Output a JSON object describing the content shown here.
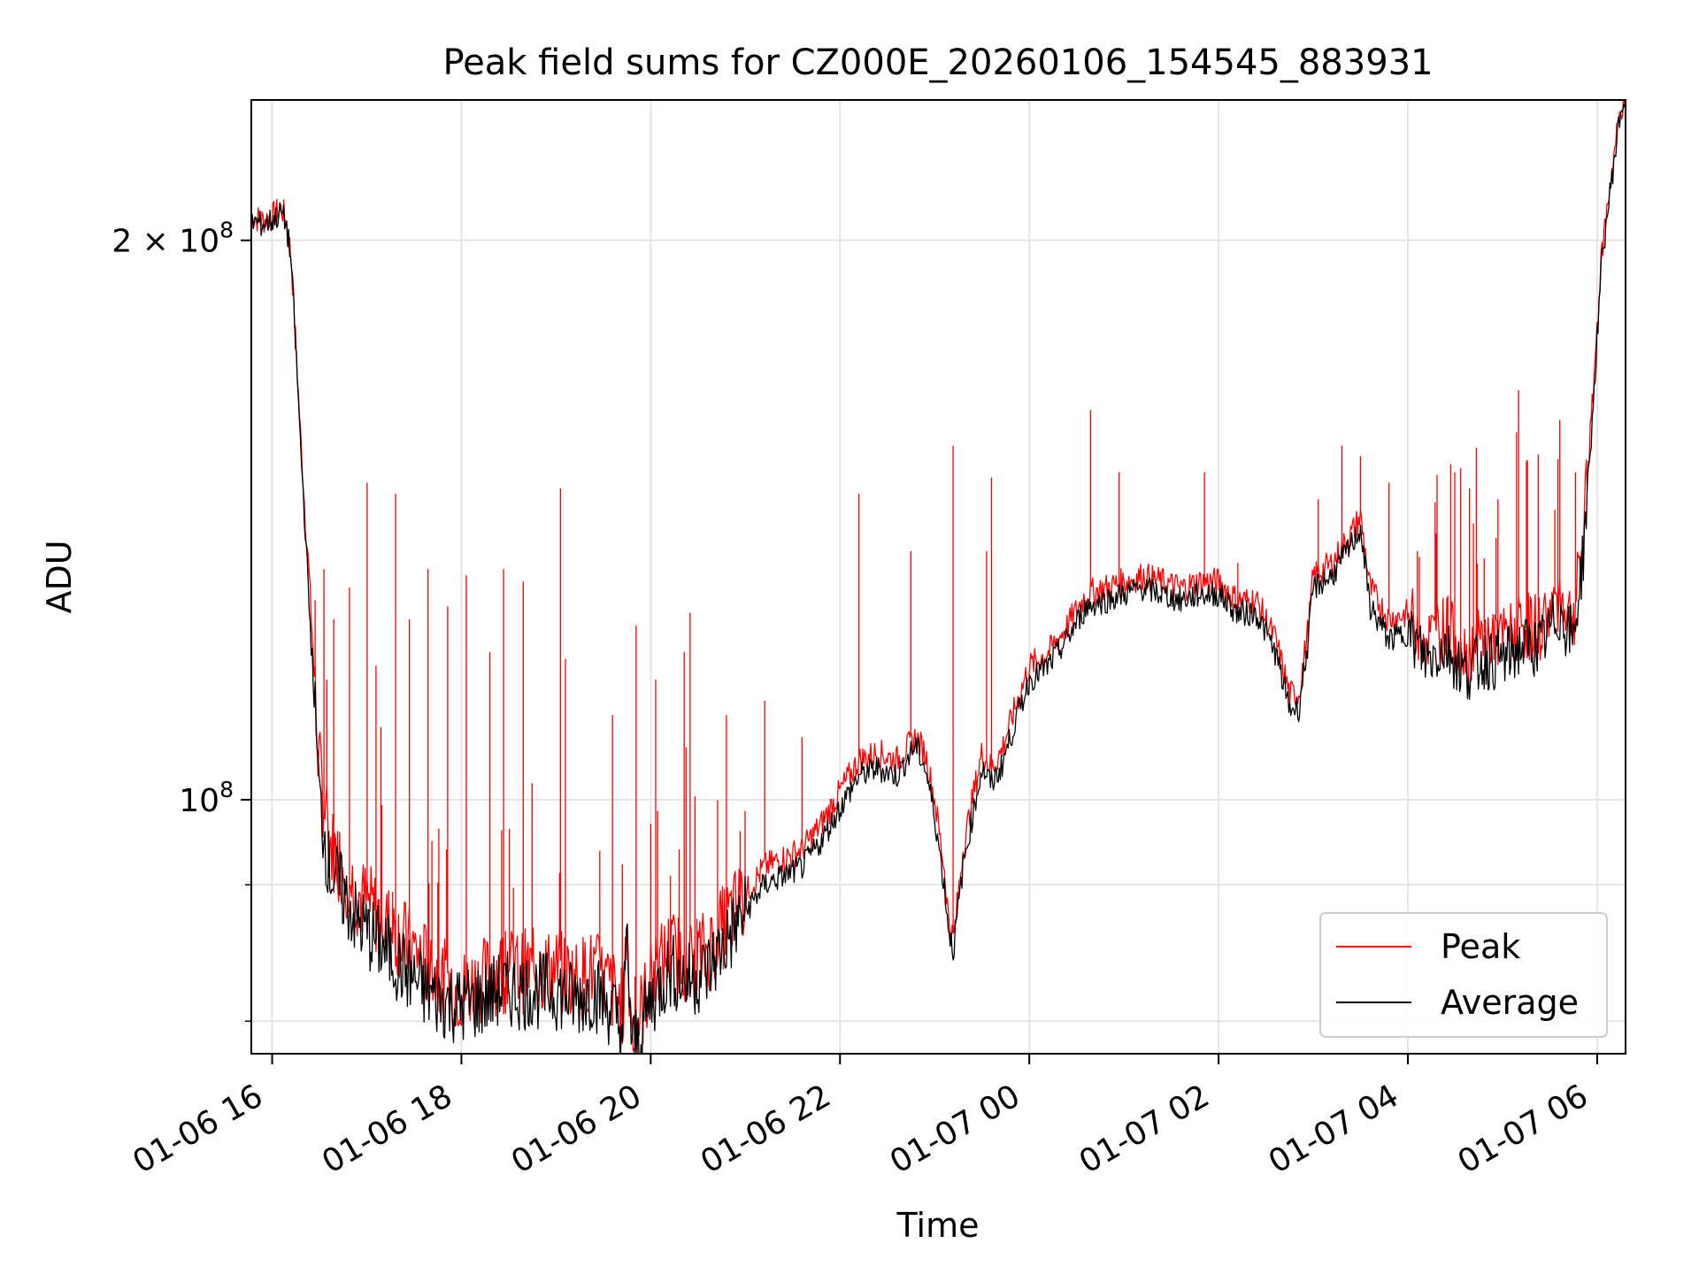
{
  "chart_data": {
    "type": "line",
    "title": "Peak field sums for CZ000E_20260106_154545_883931",
    "xlabel": "Time",
    "ylabel": "ADU",
    "yscale": "log",
    "ylim": [
      73000000,
      238000000
    ],
    "xlim_hours": [
      15.78,
      30.3
    ],
    "grid": true,
    "legend_position": "lower-right",
    "x_ticks": [
      {
        "hour": 16,
        "label": "01-06 16"
      },
      {
        "hour": 18,
        "label": "01-06 18"
      },
      {
        "hour": 20,
        "label": "01-06 20"
      },
      {
        "hour": 22,
        "label": "01-06 22"
      },
      {
        "hour": 24,
        "label": "01-07 00"
      },
      {
        "hour": 26,
        "label": "01-07 02"
      },
      {
        "hour": 28,
        "label": "01-07 04"
      },
      {
        "hour": 30,
        "label": "01-07 06"
      }
    ],
    "y_ticks": [
      {
        "value": 100000000,
        "base": "10",
        "exp": "8",
        "prefix": ""
      },
      {
        "value": 200000000,
        "base": "10",
        "exp": "8",
        "prefix": "2 × "
      }
    ],
    "y_minor_ticks": [
      76000000,
      90000000
    ],
    "series": [
      {
        "name": "Average",
        "color": "#000000",
        "points": [
          [
            15.78,
            205
          ],
          [
            15.9,
            204
          ],
          [
            16.0,
            205
          ],
          [
            16.1,
            207
          ],
          [
            16.15,
            204
          ],
          [
            16.2,
            195
          ],
          [
            16.25,
            175
          ],
          [
            16.3,
            155
          ],
          [
            16.35,
            140
          ],
          [
            16.38,
            130
          ],
          [
            16.45,
            112
          ],
          [
            16.5,
            100
          ],
          [
            16.6,
            92
          ],
          [
            16.7,
            90
          ],
          [
            16.8,
            88
          ],
          [
            16.9,
            86
          ],
          [
            17.0,
            85
          ],
          [
            17.2,
            83
          ],
          [
            17.4,
            81
          ],
          [
            17.6,
            79
          ],
          [
            17.8,
            78
          ],
          [
            18.0,
            77.5
          ],
          [
            18.2,
            78
          ],
          [
            18.4,
            79
          ],
          [
            18.6,
            79
          ],
          [
            18.8,
            79
          ],
          [
            19.0,
            79
          ],
          [
            19.2,
            78
          ],
          [
            19.4,
            79
          ],
          [
            19.6,
            77
          ],
          [
            19.7,
            75
          ],
          [
            19.75,
            84
          ],
          [
            19.8,
            73.5
          ],
          [
            19.9,
            75
          ],
          [
            20.0,
            78
          ],
          [
            20.2,
            81
          ],
          [
            20.4,
            80
          ],
          [
            20.6,
            81
          ],
          [
            20.8,
            84
          ],
          [
            21.0,
            87
          ],
          [
            21.2,
            90
          ],
          [
            21.4,
            91
          ],
          [
            21.6,
            92
          ],
          [
            21.8,
            95
          ],
          [
            22.0,
            99
          ],
          [
            22.2,
            103
          ],
          [
            22.4,
            104
          ],
          [
            22.6,
            103
          ],
          [
            22.8,
            107
          ],
          [
            22.9,
            104
          ],
          [
            23.0,
            98
          ],
          [
            23.1,
            90
          ],
          [
            23.15,
            85
          ],
          [
            23.2,
            83
          ],
          [
            23.3,
            92
          ],
          [
            23.5,
            104
          ],
          [
            23.6,
            102
          ],
          [
            23.7,
            104
          ],
          [
            23.8,
            108
          ],
          [
            24.0,
            116
          ],
          [
            24.2,
            118
          ],
          [
            24.4,
            122
          ],
          [
            24.6,
            127
          ],
          [
            24.8,
            128
          ],
          [
            25.0,
            129
          ],
          [
            25.2,
            130
          ],
          [
            25.4,
            129
          ],
          [
            25.6,
            128
          ],
          [
            25.8,
            129
          ],
          [
            26.0,
            129
          ],
          [
            26.2,
            126
          ],
          [
            26.4,
            126
          ],
          [
            26.6,
            120
          ],
          [
            26.75,
            112
          ],
          [
            26.85,
            112
          ],
          [
            26.95,
            122
          ],
          [
            27.0,
            130
          ],
          [
            27.2,
            132
          ],
          [
            27.4,
            137
          ],
          [
            27.5,
            140
          ],
          [
            27.6,
            127
          ],
          [
            27.8,
            122
          ],
          [
            28.0,
            123
          ],
          [
            28.2,
            119
          ],
          [
            28.4,
            121
          ],
          [
            28.6,
            117
          ],
          [
            28.8,
            119
          ],
          [
            29.0,
            119
          ],
          [
            29.2,
            121
          ],
          [
            29.4,
            121
          ],
          [
            29.6,
            126
          ],
          [
            29.75,
            122
          ],
          [
            29.85,
            135
          ],
          [
            29.95,
            160
          ],
          [
            30.05,
            195
          ],
          [
            30.15,
            215
          ],
          [
            30.25,
            235
          ],
          [
            30.3,
            238
          ]
        ]
      },
      {
        "name": "Peak",
        "color": "#ff0000",
        "points": [
          [
            15.78,
            206
          ],
          [
            15.9,
            205
          ],
          [
            16.0,
            206
          ],
          [
            16.1,
            208
          ],
          [
            16.15,
            205
          ],
          [
            16.2,
            196
          ],
          [
            16.25,
            176
          ],
          [
            16.3,
            157
          ],
          [
            16.35,
            142
          ],
          [
            16.38,
            135
          ],
          [
            16.45,
            115
          ],
          [
            16.5,
            104
          ],
          [
            16.6,
            95
          ],
          [
            16.7,
            93
          ],
          [
            16.8,
            91
          ],
          [
            16.9,
            89
          ],
          [
            17.0,
            88
          ],
          [
            17.2,
            86
          ],
          [
            17.4,
            84
          ],
          [
            17.6,
            82
          ],
          [
            17.8,
            80
          ],
          [
            18.0,
            79
          ],
          [
            18.2,
            80
          ],
          [
            18.4,
            81
          ],
          [
            18.6,
            81
          ],
          [
            18.8,
            81
          ],
          [
            19.0,
            81
          ],
          [
            19.2,
            80
          ],
          [
            19.4,
            81
          ],
          [
            19.6,
            79
          ],
          [
            19.7,
            77
          ],
          [
            19.75,
            85
          ],
          [
            19.8,
            75
          ],
          [
            19.9,
            77
          ],
          [
            20.0,
            80
          ],
          [
            20.2,
            83
          ],
          [
            20.4,
            82
          ],
          [
            20.6,
            83
          ],
          [
            20.8,
            86
          ],
          [
            21.0,
            89
          ],
          [
            21.2,
            92
          ],
          [
            21.4,
            93
          ],
          [
            21.6,
            94
          ],
          [
            21.8,
            97
          ],
          [
            22.0,
            101
          ],
          [
            22.2,
            105
          ],
          [
            22.4,
            106
          ],
          [
            22.6,
            105
          ],
          [
            22.8,
            108
          ],
          [
            22.9,
            106
          ],
          [
            23.0,
            100
          ],
          [
            23.1,
            92
          ],
          [
            23.15,
            86
          ],
          [
            23.2,
            84
          ],
          [
            23.3,
            94
          ],
          [
            23.5,
            106
          ],
          [
            23.6,
            104
          ],
          [
            23.7,
            106
          ],
          [
            23.8,
            110
          ],
          [
            24.0,
            118
          ],
          [
            24.2,
            120
          ],
          [
            24.4,
            124
          ],
          [
            24.6,
            129
          ],
          [
            24.8,
            130
          ],
          [
            25.0,
            131
          ],
          [
            25.2,
            132
          ],
          [
            25.4,
            131
          ],
          [
            25.6,
            130
          ],
          [
            25.8,
            131
          ],
          [
            26.0,
            131
          ],
          [
            26.2,
            128
          ],
          [
            26.4,
            128
          ],
          [
            26.6,
            122
          ],
          [
            26.75,
            114
          ],
          [
            26.85,
            114
          ],
          [
            26.95,
            124
          ],
          [
            27.0,
            132
          ],
          [
            27.2,
            134
          ],
          [
            27.4,
            139
          ],
          [
            27.5,
            142
          ],
          [
            27.6,
            130
          ],
          [
            27.8,
            125
          ],
          [
            28.0,
            126
          ],
          [
            28.2,
            122
          ],
          [
            28.4,
            124
          ],
          [
            28.6,
            120
          ],
          [
            28.8,
            122
          ],
          [
            29.0,
            122
          ],
          [
            29.2,
            124
          ],
          [
            29.4,
            124
          ],
          [
            29.6,
            129
          ],
          [
            29.75,
            125
          ],
          [
            29.85,
            138
          ],
          [
            29.95,
            163
          ],
          [
            30.05,
            197
          ],
          [
            30.15,
            217
          ],
          [
            30.25,
            236
          ],
          [
            30.3,
            238
          ]
        ],
        "spikes": [
          [
            16.45,
            128
          ],
          [
            16.55,
            133
          ],
          [
            16.65,
            125
          ],
          [
            16.82,
            130
          ],
          [
            17.0,
            148
          ],
          [
            17.1,
            118
          ],
          [
            17.3,
            146
          ],
          [
            17.45,
            125
          ],
          [
            17.65,
            133
          ],
          [
            17.85,
            127
          ],
          [
            18.05,
            132
          ],
          [
            18.3,
            120
          ],
          [
            18.45,
            133
          ],
          [
            18.65,
            131
          ],
          [
            19.05,
            147
          ],
          [
            19.1,
            119
          ],
          [
            19.6,
            111
          ],
          [
            19.85,
            124
          ],
          [
            20.05,
            116
          ],
          [
            20.35,
            120
          ],
          [
            20.42,
            126
          ],
          [
            20.8,
            111
          ],
          [
            21.2,
            113
          ],
          [
            21.6,
            108
          ],
          [
            22.2,
            146
          ],
          [
            22.75,
            136
          ],
          [
            23.2,
            155
          ],
          [
            23.55,
            136
          ],
          [
            23.6,
            149
          ],
          [
            24.25,
            121
          ],
          [
            24.65,
            162
          ],
          [
            24.95,
            150
          ],
          [
            25.85,
            150
          ],
          [
            26.2,
            134
          ],
          [
            27.05,
            145
          ],
          [
            27.3,
            155
          ],
          [
            27.5,
            153
          ],
          [
            27.8,
            148
          ],
          [
            28.1,
            136
          ],
          [
            28.3,
            139
          ],
          [
            28.5,
            150
          ],
          [
            28.65,
            147
          ],
          [
            28.95,
            145
          ],
          [
            29.25,
            152
          ],
          [
            29.6,
            160
          ]
        ]
      }
    ]
  }
}
